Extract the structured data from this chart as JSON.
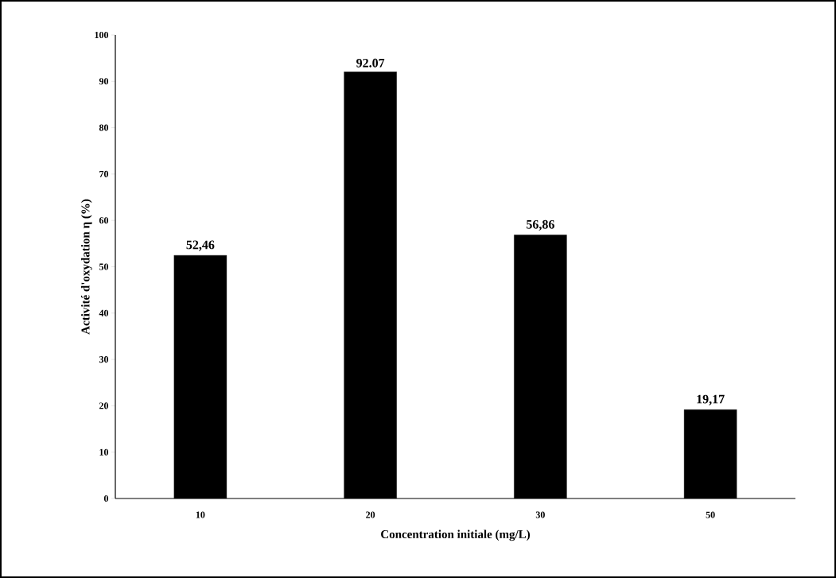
{
  "chart_data": {
    "type": "bar",
    "xlabel": "Concentration initiale (mg/L)",
    "ylabel": "Activité d'oxydation  η (%)",
    "categories": [
      "10",
      "20",
      "30",
      "50"
    ],
    "values": [
      52.46,
      92.07,
      56.86,
      19.17
    ],
    "value_labels": [
      "52,46",
      "92.07",
      "56,86",
      "19,17"
    ],
    "color": "#000000",
    "ylim": [
      0,
      100
    ],
    "yticks": [
      0,
      10,
      20,
      30,
      40,
      50,
      60,
      70,
      80,
      90,
      100
    ]
  }
}
